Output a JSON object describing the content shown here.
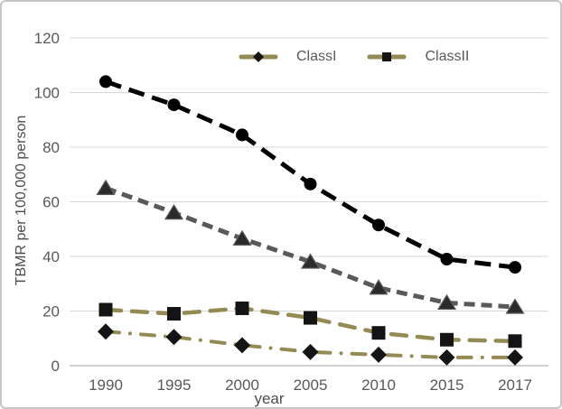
{
  "frame": {
    "background_color": "#ffffff",
    "border_color": "#c6c6c6"
  },
  "chart_data": {
    "type": "line",
    "title": "",
    "xlabel": "year",
    "ylabel": "TBMR per 100,000 person",
    "categories": [
      "1990",
      "1995",
      "2000",
      "2005",
      "2010",
      "2015",
      "2017"
    ],
    "ylim": [
      0,
      120
    ],
    "yticks": [
      0,
      20,
      40,
      60,
      80,
      100,
      120
    ],
    "grid": "horizontal",
    "gridline_color": "#d9d9d9",
    "axis_line_color": "#bfbfbf",
    "tick_label_color": "#595959",
    "axis_title_color": "#4d4d4d",
    "legend": {
      "position": "top-center-inside",
      "entries": [
        {
          "label": "ClassI",
          "marker": "diamond",
          "marker_color": "#141414",
          "line_color": "#948A54"
        },
        {
          "label": "ClassII",
          "marker": "square",
          "marker_color": "#141414",
          "line_color": "#948A54"
        }
      ]
    },
    "series": [
      {
        "label": "",
        "in_legend": false,
        "marker": "circle",
        "marker_color": "#000000",
        "line_color": "#000000",
        "line_style": "dashed",
        "values": [
          104,
          95.5,
          84.5,
          66.5,
          51.5,
          39,
          36
        ]
      },
      {
        "label": "",
        "in_legend": false,
        "marker": "triangle",
        "marker_color": "#2b2b2b",
        "line_color": "#595959",
        "line_style": "short-dash",
        "values": [
          65,
          56,
          46.5,
          38,
          28.5,
          23,
          21.5
        ]
      },
      {
        "label": "ClassII",
        "in_legend": true,
        "marker": "square",
        "marker_color": "#141414",
        "line_color": "#948A54",
        "line_style": "long-dash",
        "values": [
          20.5,
          19,
          21,
          17.5,
          12,
          9.5,
          9
        ]
      },
      {
        "label": "ClassI",
        "in_legend": true,
        "marker": "diamond",
        "marker_color": "#141414",
        "line_color": "#948A54",
        "line_style": "dash-dot",
        "values": [
          12.5,
          10.5,
          7.5,
          5,
          4,
          3,
          3
        ]
      }
    ]
  }
}
